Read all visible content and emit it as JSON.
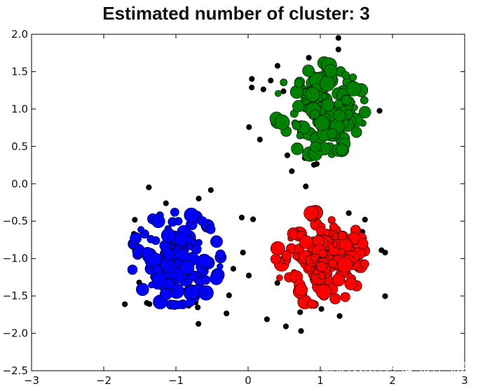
{
  "chart_data": {
    "type": "scatter",
    "title": "Estimated number of cluster: 3",
    "xlabel": "",
    "ylabel": "",
    "xlim": [
      -3,
      3
    ],
    "ylim": [
      -2.5,
      2.0
    ],
    "x_ticks": [
      "−3",
      "−2",
      "−1",
      "0",
      "1",
      "2",
      "3"
    ],
    "y_ticks": [
      "2.0",
      "1.5",
      "1.0",
      "0.5",
      "0.0",
      "−0.5",
      "−1.0",
      "−1.5",
      "−2.0",
      "−2.5"
    ],
    "grid": false,
    "clusters": [
      {
        "color": "#0000ff",
        "center": [
          -1.0,
          -1.0
        ],
        "spread": 0.3,
        "count": 160
      },
      {
        "color": "#ff0000",
        "center": [
          1.0,
          -1.0
        ],
        "spread": 0.3,
        "count": 160
      },
      {
        "color": "#008000",
        "center": [
          1.0,
          1.0
        ],
        "spread": 0.3,
        "count": 160
      }
    ],
    "noise_color": "#000000",
    "noise_count": 55
  },
  "watermark": "掘金技术社区 @ 布客飞龙"
}
